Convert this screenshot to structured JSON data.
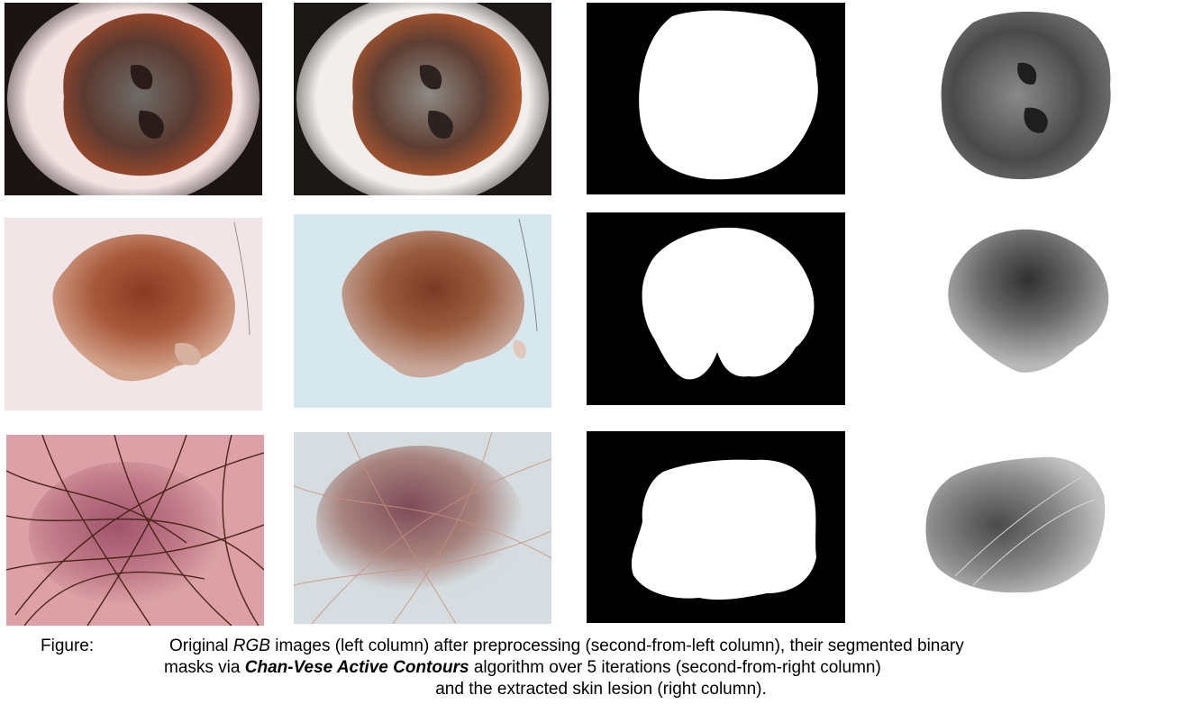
{
  "figure": {
    "panels": [
      {
        "row": 1,
        "column": "original-rgb",
        "kind": "dermoscopy-photo",
        "background": "#e8d6d6",
        "lesion_colors": [
          "#6b2e22",
          "#7d7570",
          "#a8502e"
        ]
      },
      {
        "row": 1,
        "column": "preprocessed",
        "kind": "dermoscopy-photo",
        "background": "#ece8e6",
        "lesion_colors": [
          "#6e3426",
          "#8a8680",
          "#b05a34"
        ]
      },
      {
        "row": 1,
        "column": "binary-mask",
        "kind": "mask",
        "background": "#000000",
        "foreground": "#ffffff"
      },
      {
        "row": 1,
        "column": "extracted-lesion",
        "kind": "grayscale-lesion",
        "background": "#ffffff"
      },
      {
        "row": 2,
        "column": "original-rgb",
        "kind": "dermoscopy-photo",
        "background": "#efe4e6",
        "lesion_colors": [
          "#9a4a2e",
          "#c47a4e"
        ]
      },
      {
        "row": 2,
        "column": "preprocessed",
        "kind": "dermoscopy-photo",
        "background": "#d8e8ee",
        "lesion_colors": [
          "#8e4a30",
          "#b4744e"
        ]
      },
      {
        "row": 2,
        "column": "binary-mask",
        "kind": "mask",
        "background": "#000000",
        "foreground": "#ffffff"
      },
      {
        "row": 2,
        "column": "extracted-lesion",
        "kind": "grayscale-lesion",
        "background": "#ffffff"
      },
      {
        "row": 3,
        "column": "original-rgb",
        "kind": "dermoscopy-photo",
        "background": "#d99aa0",
        "lesion_colors": [
          "#a45a6e",
          "#5a2a1a"
        ]
      },
      {
        "row": 3,
        "column": "preprocessed",
        "kind": "dermoscopy-photo",
        "background": "#d6dde0",
        "lesion_colors": [
          "#8e5a66",
          "#c89a8e"
        ]
      },
      {
        "row": 3,
        "column": "binary-mask",
        "kind": "mask",
        "background": "#000000",
        "foreground": "#ffffff"
      },
      {
        "row": 3,
        "column": "extracted-lesion",
        "kind": "grayscale-lesion",
        "background": "#ffffff"
      }
    ]
  },
  "caption": {
    "label": "Figure:",
    "line1": {
      "pre": "Original ",
      "rgb": "RGB",
      "post": " images (left column) after preprocessing (second-from-left column), their segmented binary"
    },
    "line2": {
      "pre": "masks via ",
      "algorithm": "Chan-Vese Active Contours",
      "post": " algorithm over 5 iterations (second-from-right column)"
    },
    "line3": "and the extracted skin lesion (right column)."
  }
}
